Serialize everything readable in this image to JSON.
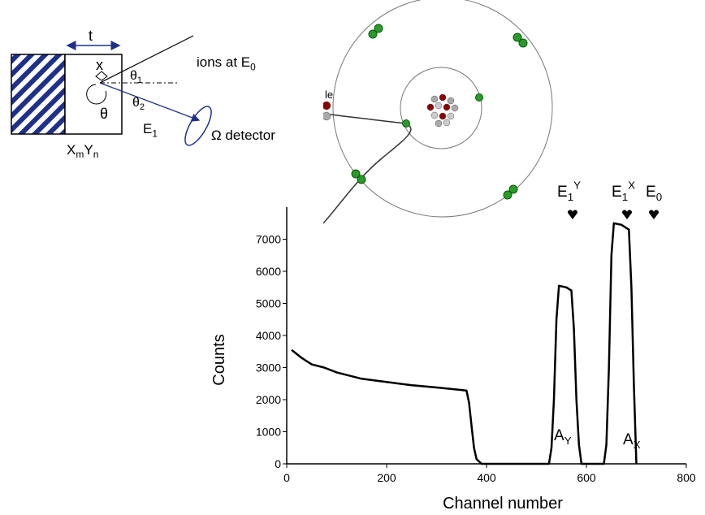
{
  "diagram": {
    "thickness": "t",
    "depth": "x",
    "theta1": {
      "text": "θ",
      "sub": "1"
    },
    "theta2": {
      "text": "θ",
      "sub": "2"
    },
    "theta": "θ",
    "exit_energy": {
      "text": "E",
      "sub": "1"
    },
    "incident": {
      "text": "ions at E",
      "sub": "0"
    },
    "detector": "Ω detector",
    "sample": {
      "parts": [
        {
          "text": "X",
          "sub": "m"
        },
        {
          "text": "Y",
          "sub": "n"
        }
      ]
    },
    "atom_label": "le"
  },
  "chart_data": {
    "type": "line",
    "x": [
      10,
      30,
      50,
      75,
      100,
      150,
      200,
      250,
      300,
      350,
      360,
      365,
      370,
      375,
      380,
      390,
      400,
      525,
      530,
      535,
      540,
      545,
      560,
      570,
      575,
      580,
      585,
      590,
      635,
      640,
      645,
      650,
      655,
      670,
      685,
      690,
      695,
      700
    ],
    "values": [
      3550,
      3300,
      3100,
      3000,
      2850,
      2650,
      2550,
      2450,
      2380,
      2300,
      2280,
      1900,
      1200,
      500,
      150,
      0,
      0,
      0,
      500,
      2000,
      4500,
      5550,
      5500,
      5400,
      4200,
      2000,
      600,
      0,
      0,
      600,
      3000,
      6500,
      7500,
      7450,
      7300,
      5500,
      2500,
      0
    ],
    "color": "#000000",
    "xlim": [
      0,
      800
    ],
    "ylim": [
      0,
      8000
    ],
    "xticks": [
      0,
      200,
      400,
      600,
      800
    ],
    "yticks": [
      0,
      1000,
      2000,
      3000,
      4000,
      5000,
      6000,
      7000
    ],
    "xlabel": "Channel number",
    "ylabel": "Counts",
    "annotations": [
      {
        "text": "A",
        "sub": "Y"
      },
      {
        "text": "A",
        "sub": "X"
      },
      {
        "text": "E",
        "sub": "1",
        "sup": "Y"
      },
      {
        "text": "E",
        "sub": "1",
        "sup": "X"
      },
      {
        "text": "E",
        "sub": "0"
      }
    ]
  }
}
